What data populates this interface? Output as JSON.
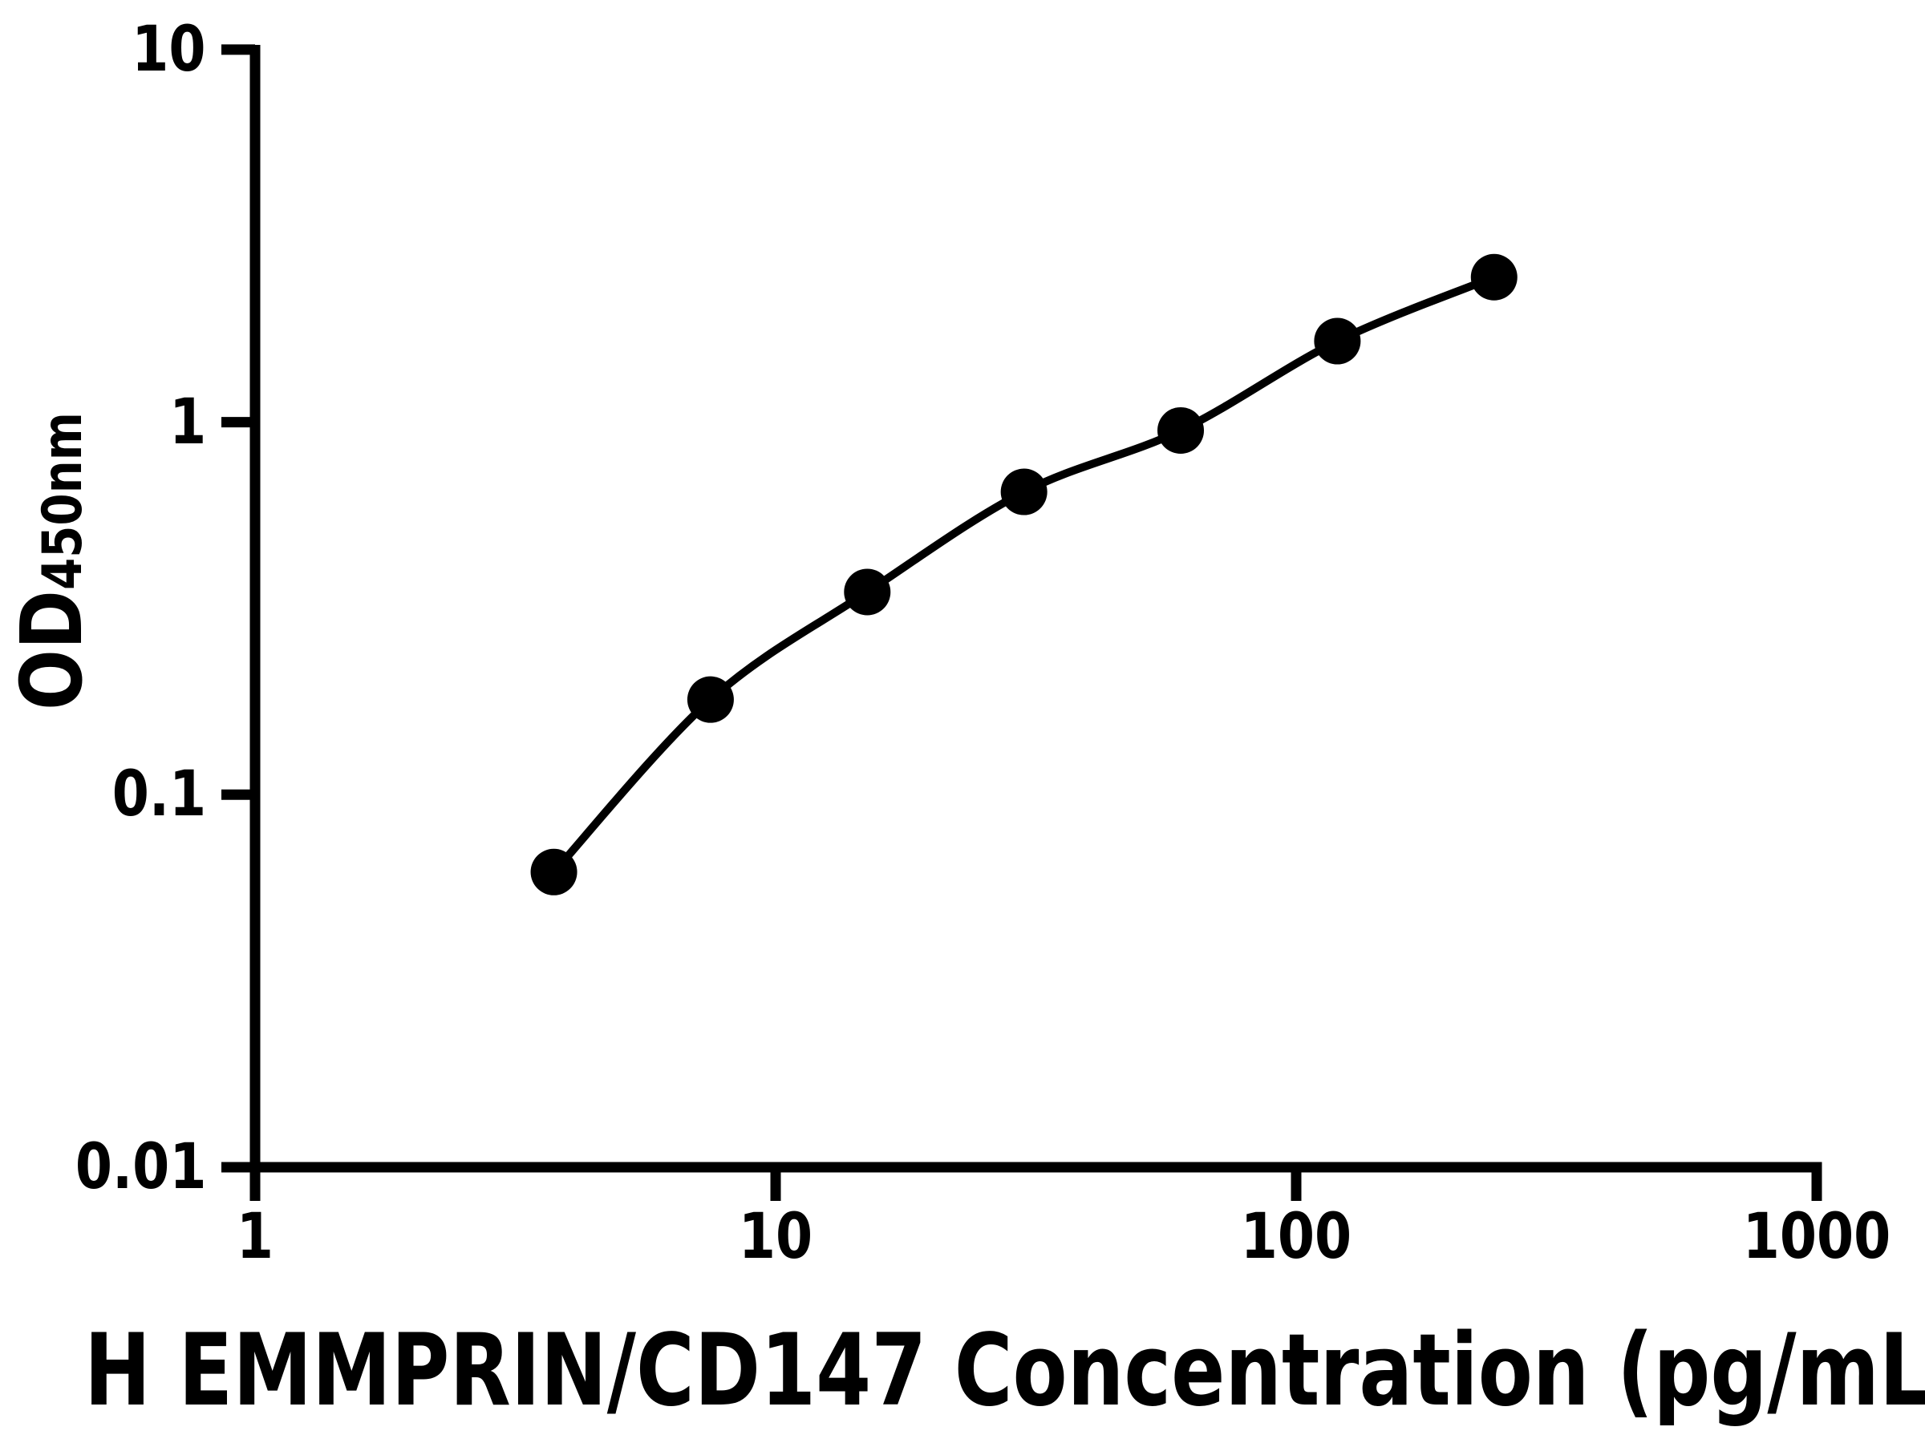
{
  "page": {
    "background": "#ffffff",
    "foreground": "#000000"
  },
  "chart_data": {
    "type": "scatter",
    "title": "",
    "x": [
      3.75,
      7.5,
      15,
      30,
      60,
      120,
      240
    ],
    "y": [
      0.062,
      0.18,
      0.35,
      0.65,
      0.95,
      1.65,
      2.45
    ],
    "xlabel": "H EMMPRIN/CD147 Concentration (pg/mL",
    "ylabel_main": "OD",
    "ylabel_sub": "450nm",
    "xscale": "log",
    "yscale": "log",
    "xlim": [
      1,
      1000
    ],
    "ylim": [
      0.01,
      10
    ],
    "xticks": [
      1,
      10,
      100,
      1000
    ],
    "xtick_labels": [
      "1",
      "10",
      "100",
      "1000"
    ],
    "yticks": [
      10,
      1,
      0.1,
      0.01
    ],
    "ytick_labels": [
      "10",
      "1",
      "0.1",
      "0.01"
    ],
    "grid": false,
    "legend": false,
    "marker_style": "filled-circle",
    "line_style": "smooth",
    "series_color": "#000000",
    "axis_color": "#000000"
  }
}
